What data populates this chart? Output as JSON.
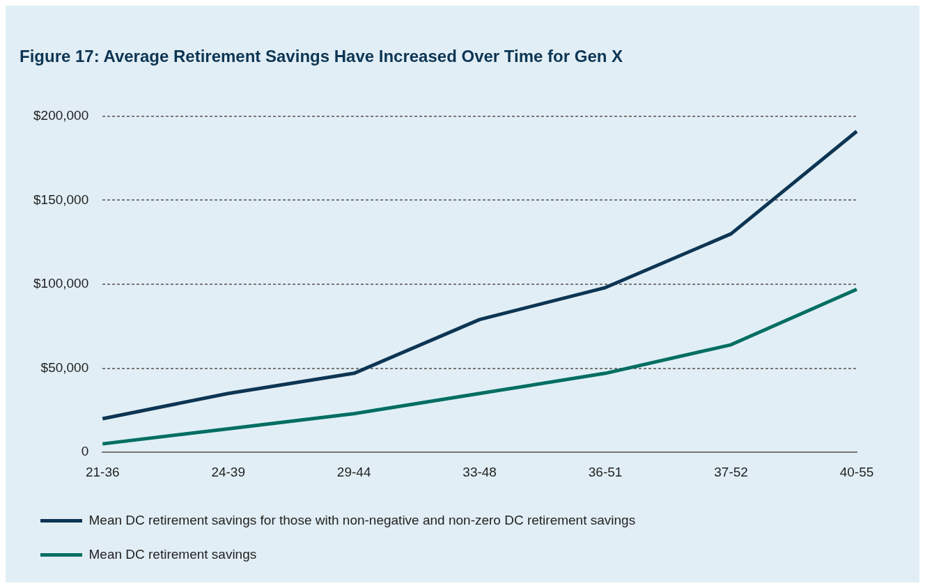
{
  "chart_data": {
    "type": "line",
    "title": "Figure 17: Average Retirement Savings Have Increased Over Time for Gen X",
    "categories": [
      "21-36",
      "24-39",
      "29-44",
      "33-48",
      "36-51",
      "37-52",
      "40-55"
    ],
    "series": [
      {
        "name": "Mean DC retirement savings for those with non-negative and non-zero DC retirement savings",
        "color": "#0d3553",
        "values": [
          20000,
          35000,
          47000,
          79000,
          98000,
          130000,
          191000
        ]
      },
      {
        "name": "Mean DC retirement savings",
        "color": "#006e62",
        "values": [
          5000,
          14000,
          23000,
          35000,
          47000,
          64000,
          97000
        ]
      }
    ],
    "ylim": [
      0,
      200000
    ],
    "yticks": [
      0,
      {
        "value": 50000,
        "label": "$50,000"
      },
      {
        "value": 100000,
        "label": "$100,000"
      },
      {
        "value": 150000,
        "label": "$150,000"
      },
      {
        "value": 200000,
        "label": "$200,000"
      }
    ],
    "grid": "y",
    "legend": "bottom",
    "marker": "none",
    "line_style": "solid"
  }
}
